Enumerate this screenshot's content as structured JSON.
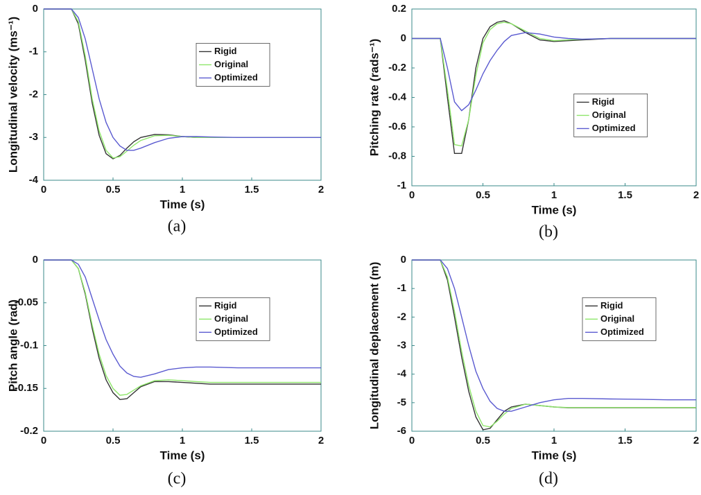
{
  "chart_data": [
    {
      "type": "line",
      "caption": "(a)",
      "xlabel": "Time (s)",
      "ylabel": "Longitudinal velocity (ms⁻¹)",
      "legend": "upper center",
      "xlim": [
        0,
        2
      ],
      "xticks": [
        0,
        0.5,
        1,
        1.5,
        2
      ],
      "ylim": [
        -4,
        0
      ],
      "yticks": [
        -4,
        -3,
        -2,
        -1,
        0
      ],
      "x": [
        0,
        0.2,
        0.25,
        0.3,
        0.35,
        0.4,
        0.45,
        0.5,
        0.55,
        0.6,
        0.65,
        0.7,
        0.8,
        0.9,
        1.0,
        1.1,
        1.2,
        1.4,
        1.6,
        1.8,
        2.0
      ],
      "series": [
        {
          "name": "Rigid",
          "color": "#333333",
          "values": [
            0,
            0,
            -0.35,
            -1.2,
            -2.2,
            -2.95,
            -3.38,
            -3.5,
            -3.42,
            -3.25,
            -3.1,
            -3.0,
            -2.93,
            -2.94,
            -2.98,
            -3.0,
            -3.0,
            -3.0,
            -3.0,
            -3.0,
            -3.0
          ]
        },
        {
          "name": "Original",
          "color": "#8ee66a",
          "values": [
            0,
            0,
            -0.3,
            -1.1,
            -2.1,
            -2.85,
            -3.3,
            -3.48,
            -3.45,
            -3.32,
            -3.18,
            -3.07,
            -2.96,
            -2.95,
            -2.98,
            -3.0,
            -3.0,
            -3.0,
            -3.0,
            -3.0,
            -3.0
          ]
        },
        {
          "name": "Optimized",
          "color": "#5a5ad0",
          "values": [
            0,
            0,
            -0.2,
            -0.7,
            -1.4,
            -2.1,
            -2.65,
            -3.0,
            -3.2,
            -3.3,
            -3.3,
            -3.25,
            -3.12,
            -3.02,
            -2.98,
            -2.98,
            -2.99,
            -3.0,
            -3.0,
            -3.0,
            -3.0
          ]
        }
      ]
    },
    {
      "type": "line",
      "caption": "(b)",
      "xlabel": "Time (s)",
      "ylabel": "Pitching rate (rads⁻¹)",
      "legend": "center right",
      "xlim": [
        0,
        2
      ],
      "xticks": [
        0,
        0.5,
        1,
        1.5,
        2
      ],
      "ylim": [
        -1,
        0.2
      ],
      "yticks": [
        -1,
        -0.8,
        -0.6,
        -0.4,
        -0.2,
        0,
        0.2
      ],
      "x": [
        0,
        0.2,
        0.25,
        0.3,
        0.35,
        0.4,
        0.45,
        0.5,
        0.55,
        0.6,
        0.65,
        0.7,
        0.8,
        0.9,
        1.0,
        1.1,
        1.2,
        1.4,
        1.6,
        1.8,
        2.0
      ],
      "series": [
        {
          "name": "Rigid",
          "color": "#333333",
          "values": [
            0,
            0,
            -0.4,
            -0.78,
            -0.78,
            -0.55,
            -0.2,
            0.0,
            0.08,
            0.11,
            0.12,
            0.1,
            0.04,
            -0.01,
            -0.02,
            -0.015,
            -0.01,
            0,
            0,
            0,
            0
          ]
        },
        {
          "name": "Original",
          "color": "#8ee66a",
          "values": [
            0,
            0,
            -0.35,
            -0.72,
            -0.73,
            -0.55,
            -0.25,
            -0.03,
            0.06,
            0.1,
            0.11,
            0.1,
            0.05,
            0.0,
            -0.015,
            -0.01,
            -0.005,
            0,
            0,
            0,
            0
          ]
        },
        {
          "name": "Optimized",
          "color": "#5a5ad0",
          "values": [
            0,
            0,
            -0.2,
            -0.43,
            -0.49,
            -0.45,
            -0.35,
            -0.24,
            -0.15,
            -0.08,
            -0.02,
            0.02,
            0.04,
            0.03,
            0.01,
            0,
            -0.005,
            0,
            0,
            0,
            0
          ]
        }
      ]
    },
    {
      "type": "line",
      "caption": "(c)",
      "xlabel": "Time (s)",
      "ylabel": "Pitch angle (rad)",
      "legend": "center right",
      "xlim": [
        0,
        2
      ],
      "xticks": [
        0,
        0.5,
        1,
        1.5,
        2
      ],
      "ylim": [
        -0.2,
        0
      ],
      "yticks": [
        -0.2,
        -0.15,
        -0.1,
        -0.05,
        0
      ],
      "x": [
        0,
        0.2,
        0.25,
        0.3,
        0.35,
        0.4,
        0.45,
        0.5,
        0.55,
        0.6,
        0.65,
        0.7,
        0.8,
        0.9,
        1.0,
        1.1,
        1.2,
        1.4,
        1.6,
        1.8,
        2.0
      ],
      "series": [
        {
          "name": "Rigid",
          "color": "#333333",
          "values": [
            0,
            0,
            -0.01,
            -0.04,
            -0.08,
            -0.115,
            -0.14,
            -0.155,
            -0.163,
            -0.162,
            -0.155,
            -0.148,
            -0.142,
            -0.142,
            -0.143,
            -0.144,
            -0.145,
            -0.145,
            -0.145,
            -0.145,
            -0.145
          ]
        },
        {
          "name": "Original",
          "color": "#8ee66a",
          "values": [
            0,
            0,
            -0.01,
            -0.038,
            -0.076,
            -0.11,
            -0.135,
            -0.15,
            -0.158,
            -0.157,
            -0.152,
            -0.147,
            -0.141,
            -0.14,
            -0.141,
            -0.142,
            -0.143,
            -0.143,
            -0.143,
            -0.143,
            -0.143
          ]
        },
        {
          "name": "Optimized",
          "color": "#5a5ad0",
          "values": [
            0,
            0,
            -0.005,
            -0.02,
            -0.045,
            -0.07,
            -0.093,
            -0.11,
            -0.124,
            -0.132,
            -0.136,
            -0.137,
            -0.133,
            -0.128,
            -0.126,
            -0.125,
            -0.125,
            -0.126,
            -0.126,
            -0.126,
            -0.126
          ]
        }
      ]
    },
    {
      "type": "line",
      "caption": "(d)",
      "xlabel": "Time (s)",
      "ylabel": "Longitudinal deplacement (m)",
      "legend": "center",
      "xlim": [
        0,
        2
      ],
      "xticks": [
        0,
        0.5,
        1,
        1.5,
        2
      ],
      "ylim": [
        -6,
        0
      ],
      "yticks": [
        -6,
        -5,
        -4,
        -3,
        -2,
        -1,
        0
      ],
      "x": [
        0,
        0.2,
        0.25,
        0.3,
        0.35,
        0.4,
        0.45,
        0.5,
        0.55,
        0.6,
        0.65,
        0.7,
        0.8,
        0.9,
        1.0,
        1.1,
        1.2,
        1.4,
        1.6,
        1.8,
        2.0
      ],
      "series": [
        {
          "name": "Rigid",
          "color": "#333333",
          "values": [
            0,
            0,
            -0.7,
            -2.0,
            -3.4,
            -4.6,
            -5.5,
            -5.95,
            -5.9,
            -5.6,
            -5.3,
            -5.15,
            -5.05,
            -5.1,
            -5.15,
            -5.18,
            -5.18,
            -5.18,
            -5.18,
            -5.18,
            -5.18
          ]
        },
        {
          "name": "Original",
          "color": "#8ee66a",
          "values": [
            0,
            0,
            -0.6,
            -1.8,
            -3.2,
            -4.4,
            -5.3,
            -5.8,
            -5.85,
            -5.65,
            -5.4,
            -5.2,
            -5.05,
            -5.1,
            -5.15,
            -5.17,
            -5.17,
            -5.17,
            -5.17,
            -5.17,
            -5.17
          ]
        },
        {
          "name": "Optimized",
          "color": "#5a5ad0",
          "values": [
            0,
            0,
            -0.3,
            -1.0,
            -2.0,
            -3.0,
            -3.9,
            -4.5,
            -4.95,
            -5.2,
            -5.3,
            -5.3,
            -5.15,
            -5.0,
            -4.9,
            -4.85,
            -4.85,
            -4.87,
            -4.88,
            -4.9,
            -4.9
          ]
        }
      ]
    }
  ]
}
